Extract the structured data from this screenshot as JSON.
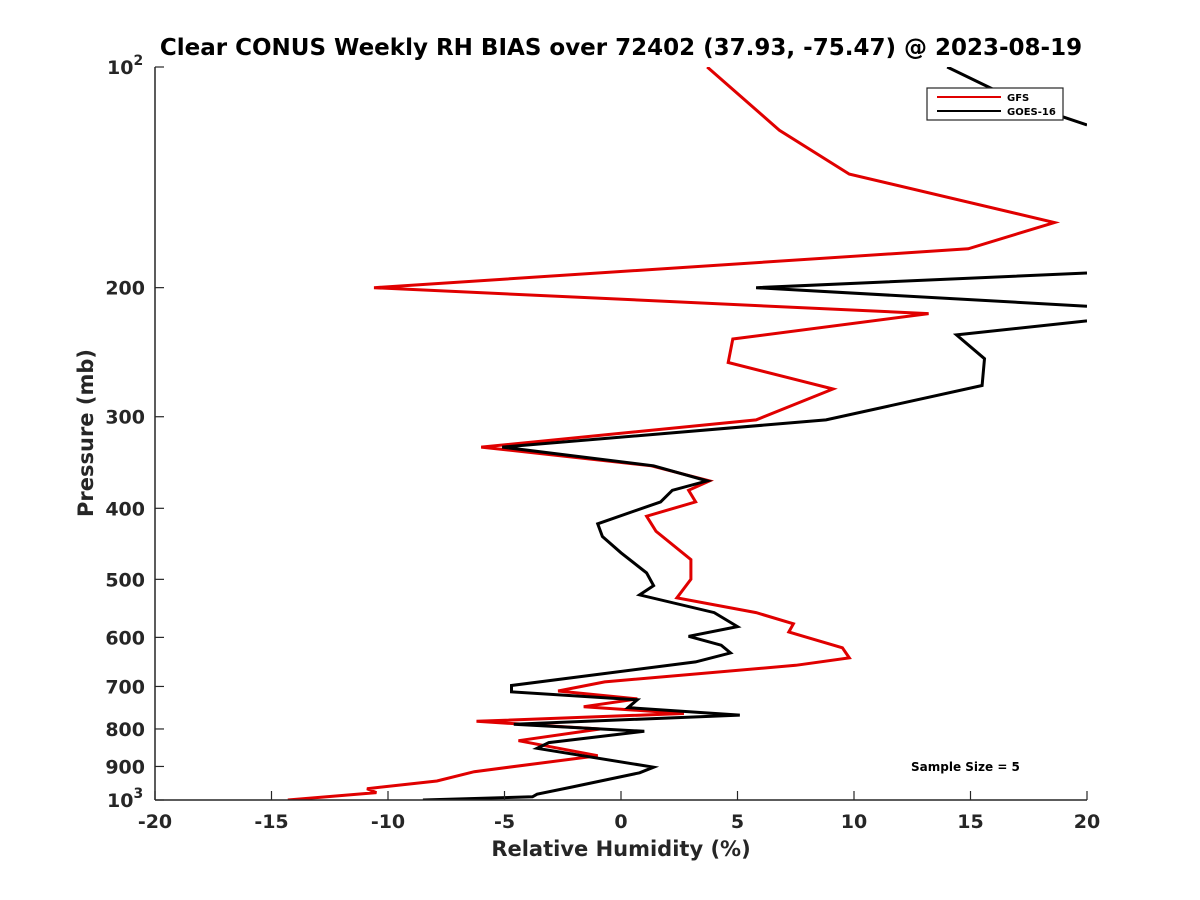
{
  "chart_data": {
    "type": "line",
    "title": "Clear CONUS Weekly RH BIAS over 72402 (37.93, -75.47) @ 2023-08-19",
    "xlabel": "Relative Humidity (%)",
    "ylabel": "Pressure (mb)",
    "xlim": [
      -20,
      20
    ],
    "ylim": [
      100,
      1000
    ],
    "yscale": "log",
    "y_reversed": true,
    "x_ticks": [
      "-20",
      "-15",
      "-10",
      "-5",
      "0",
      "5",
      "10",
      "15",
      "20"
    ],
    "y_ticks": [
      {
        "value": 100,
        "label": "10",
        "sup": "2"
      },
      {
        "value": 200,
        "label": "200"
      },
      {
        "value": 300,
        "label": "300"
      },
      {
        "value": 400,
        "label": "400"
      },
      {
        "value": 500,
        "label": "500"
      },
      {
        "value": 600,
        "label": "600"
      },
      {
        "value": 700,
        "label": "700"
      },
      {
        "value": 800,
        "label": "800"
      },
      {
        "value": 900,
        "label": "900"
      },
      {
        "value": 1000,
        "label": "10",
        "sup": "3"
      }
    ],
    "legend_position": "top-right",
    "annotation": "Sample Size = 5",
    "series": [
      {
        "name": "GFS",
        "color": "#e00000",
        "points": [
          [
            3.7,
            100
          ],
          [
            6.8,
            122
          ],
          [
            9.8,
            140
          ],
          [
            18.6,
            163
          ],
          [
            14.9,
            177
          ],
          [
            -10.6,
            200
          ],
          [
            13.2,
            217
          ],
          [
            4.8,
            235
          ],
          [
            4.6,
            253
          ],
          [
            9.1,
            275
          ],
          [
            5.8,
            303
          ],
          [
            -6.0,
            330
          ],
          [
            1.3,
            350
          ],
          [
            3.8,
            367
          ],
          [
            2.9,
            378
          ],
          [
            3.2,
            392
          ],
          [
            1.1,
            410
          ],
          [
            1.5,
            430
          ],
          [
            3.0,
            470
          ],
          [
            3.0,
            500
          ],
          [
            2.4,
            530
          ],
          [
            5.8,
            555
          ],
          [
            7.4,
            575
          ],
          [
            7.2,
            590
          ],
          [
            9.5,
            620
          ],
          [
            9.8,
            640
          ],
          [
            7.5,
            655
          ],
          [
            -0.7,
            690
          ],
          [
            -2.7,
            710
          ],
          [
            0.7,
            728
          ],
          [
            -1.6,
            746
          ],
          [
            2.7,
            762
          ],
          [
            -6.2,
            781
          ],
          [
            -0.9,
            800
          ],
          [
            -4.4,
            830
          ],
          [
            -1.0,
            870
          ],
          [
            -6.3,
            915
          ],
          [
            -7.9,
            942
          ],
          [
            -10.9,
            965
          ],
          [
            -10.5,
            977
          ],
          [
            -14.3,
            1000
          ]
        ]
      },
      {
        "name": "GOES-16",
        "color": "#000000",
        "points": [
          [
            14.0,
            100
          ],
          [
            17.2,
            112
          ],
          [
            20.0,
            120
          ],
          [
            null,
            null
          ],
          [
            20.0,
            191
          ],
          [
            5.8,
            200
          ],
          [
            20.0,
            212
          ],
          [
            null,
            null
          ],
          [
            20.0,
            222
          ],
          [
            14.4,
            232
          ],
          [
            15.6,
            250
          ],
          [
            15.5,
            272
          ],
          [
            8.8,
            303
          ],
          [
            -5.1,
            330
          ],
          [
            1.4,
            350
          ],
          [
            3.7,
            367
          ],
          [
            2.2,
            378
          ],
          [
            1.7,
            392
          ],
          [
            -1.0,
            420
          ],
          [
            -0.8,
            437
          ],
          [
            0.0,
            460
          ],
          [
            1.1,
            490
          ],
          [
            1.4,
            510
          ],
          [
            0.8,
            525
          ],
          [
            4.0,
            555
          ],
          [
            5.0,
            580
          ],
          [
            2.9,
            598
          ],
          [
            4.3,
            615
          ],
          [
            4.7,
            630
          ],
          [
            3.2,
            648
          ],
          [
            -4.7,
            698
          ],
          [
            -4.7,
            712
          ],
          [
            0.7,
            730
          ],
          [
            0.3,
            748
          ],
          [
            5.1,
            766
          ],
          [
            -4.6,
            788
          ],
          [
            1.0,
            806
          ],
          [
            -3.1,
            835
          ],
          [
            -3.6,
            850
          ],
          [
            1.4,
            902
          ],
          [
            0.8,
            918
          ],
          [
            -2.1,
            960
          ],
          [
            -3.6,
            982
          ],
          [
            -3.8,
            990
          ],
          [
            -8.5,
            1000
          ]
        ]
      }
    ]
  }
}
